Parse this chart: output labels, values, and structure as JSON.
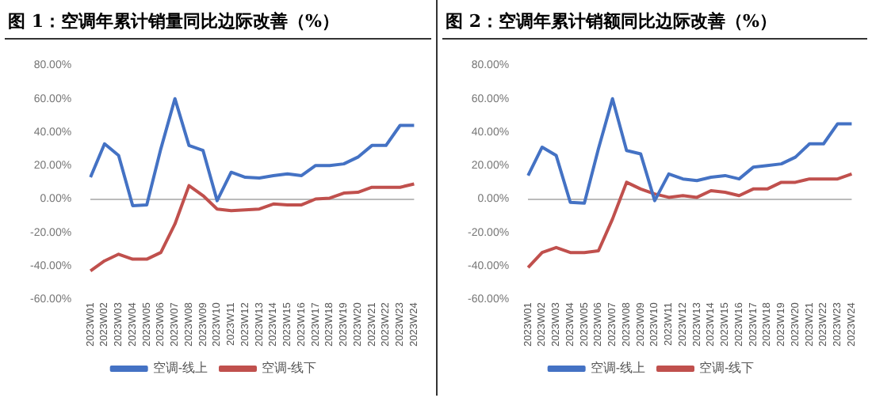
{
  "chart_data": [
    {
      "type": "line",
      "title": "图 1：空调年累计销量同比边际改善（%）",
      "categories": [
        "2023W01",
        "2023W02",
        "2023W03",
        "2023W04",
        "2023W05",
        "2023W06",
        "2023W07",
        "2023W08",
        "2023W09",
        "2023W10",
        "2023W11",
        "2023W12",
        "2023W13",
        "2023W14",
        "2023W15",
        "2023W16",
        "2023W17",
        "2023W18",
        "2023W19",
        "2023W20",
        "2023W21",
        "2023W22",
        "2023W23",
        "2023W24"
      ],
      "series": [
        {
          "name": "空调-线上",
          "color": "#4472c4",
          "values": [
            13,
            33,
            26,
            -4,
            -3.5,
            30,
            60,
            32,
            29,
            -1,
            16,
            13,
            12.5,
            14,
            15,
            14,
            20,
            20,
            21,
            25,
            32,
            32,
            44,
            44
          ]
        },
        {
          "name": "空调-线下",
          "color": "#c0504d",
          "values": [
            -43,
            -37,
            -33,
            -36,
            -36,
            -32,
            -15,
            8,
            2,
            -6,
            -7,
            -6.5,
            -6,
            -3,
            -3.5,
            -3.5,
            0,
            0.5,
            3.5,
            4,
            7,
            7,
            7,
            9
          ]
        }
      ],
      "ylim": [
        -60,
        80
      ],
      "yticks": [
        {
          "value": -60,
          "label": "-60.00%"
        },
        {
          "value": -40,
          "label": "-40.00%"
        },
        {
          "value": -20,
          "label": "-20.00%"
        },
        {
          "value": 0,
          "label": "0.00%"
        },
        {
          "value": 20,
          "label": "20.00%"
        },
        {
          "value": 40,
          "label": "40.00%"
        },
        {
          "value": 60,
          "label": "60.00%"
        },
        {
          "value": 80,
          "label": "80.00%"
        }
      ],
      "legend": "bottom",
      "marker": "none",
      "line_style": "solid"
    },
    {
      "type": "line",
      "title": "图 2：空调年累计销额同比边际改善（%）",
      "categories": [
        "2023W01",
        "2023W02",
        "2023W03",
        "2023W04",
        "2023W05",
        "2023W06",
        "2023W07",
        "2023W08",
        "2023W09",
        "2023W10",
        "2023W11",
        "2023W12",
        "2023W13",
        "2023W14",
        "2023W15",
        "2023W16",
        "2023W17",
        "2023W18",
        "2023W19",
        "2023W20",
        "2023W21",
        "2023W22",
        "2023W23",
        "2023W24"
      ],
      "series": [
        {
          "name": "空调-线上",
          "color": "#4472c4",
          "values": [
            14,
            31,
            26,
            -2,
            -2.5,
            30,
            60,
            29,
            27,
            -1,
            15,
            12,
            11,
            13,
            14,
            12,
            19,
            20,
            21,
            25,
            33,
            33,
            45,
            45
          ]
        },
        {
          "name": "空调-线下",
          "color": "#c0504d",
          "values": [
            -41,
            -32,
            -29,
            -32,
            -32,
            -31,
            -12,
            10,
            6,
            3,
            1,
            2,
            1,
            5,
            4,
            2,
            6,
            6,
            10,
            10,
            12,
            12,
            12,
            15
          ]
        }
      ],
      "ylim": [
        -60,
        80
      ],
      "yticks": [
        {
          "value": -60,
          "label": "-60.00%"
        },
        {
          "value": -40,
          "label": "-40.00%"
        },
        {
          "value": -20,
          "label": "-20.00%"
        },
        {
          "value": 0,
          "label": "0.00%"
        },
        {
          "value": 20,
          "label": "20.00%"
        },
        {
          "value": 40,
          "label": "40.00%"
        },
        {
          "value": 60,
          "label": "60.00%"
        },
        {
          "value": 80,
          "label": "80.00%"
        }
      ],
      "legend": "bottom",
      "marker": "none",
      "line_style": "solid"
    }
  ]
}
